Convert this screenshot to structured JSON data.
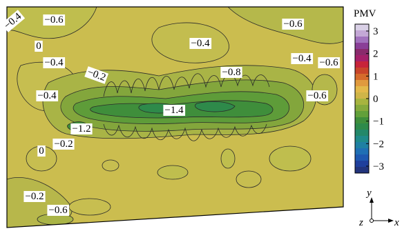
{
  "figure": {
    "colorbar": {
      "title": "PMV",
      "tick_labels": [
        "3",
        "2",
        "1",
        "0",
        "−1",
        "−2",
        "−3"
      ],
      "colors": [
        "#d9d0e6",
        "#c4a8d6",
        "#a272bd",
        "#8a3f97",
        "#8a2a6c",
        "#a4206a",
        "#c7243a",
        "#c8452a",
        "#d56b2c",
        "#e09a3e",
        "#e3b94a",
        "#cfb548",
        "#a7b43f",
        "#85a93c",
        "#62a03a",
        "#3f8e3b",
        "#2e8a4a",
        "#23886a",
        "#1f8a8a",
        "#1f80a3",
        "#1f6fb4",
        "#1e58b0",
        "#1f3f9c",
        "#22347c"
      ]
    },
    "contour_labels": [
      "−0.4",
      "−0.6",
      "−0.4",
      "−0.6",
      "0",
      "−0.4",
      "−0.2",
      "−0.8",
      "−0.4",
      "−0.6",
      "−0.4",
      "−1.4",
      "−0.6",
      "−1.2",
      "−0.2",
      "0",
      "−0.2",
      "−0.6"
    ],
    "axes": {
      "y": "y",
      "x": "x",
      "z": "z"
    }
  }
}
